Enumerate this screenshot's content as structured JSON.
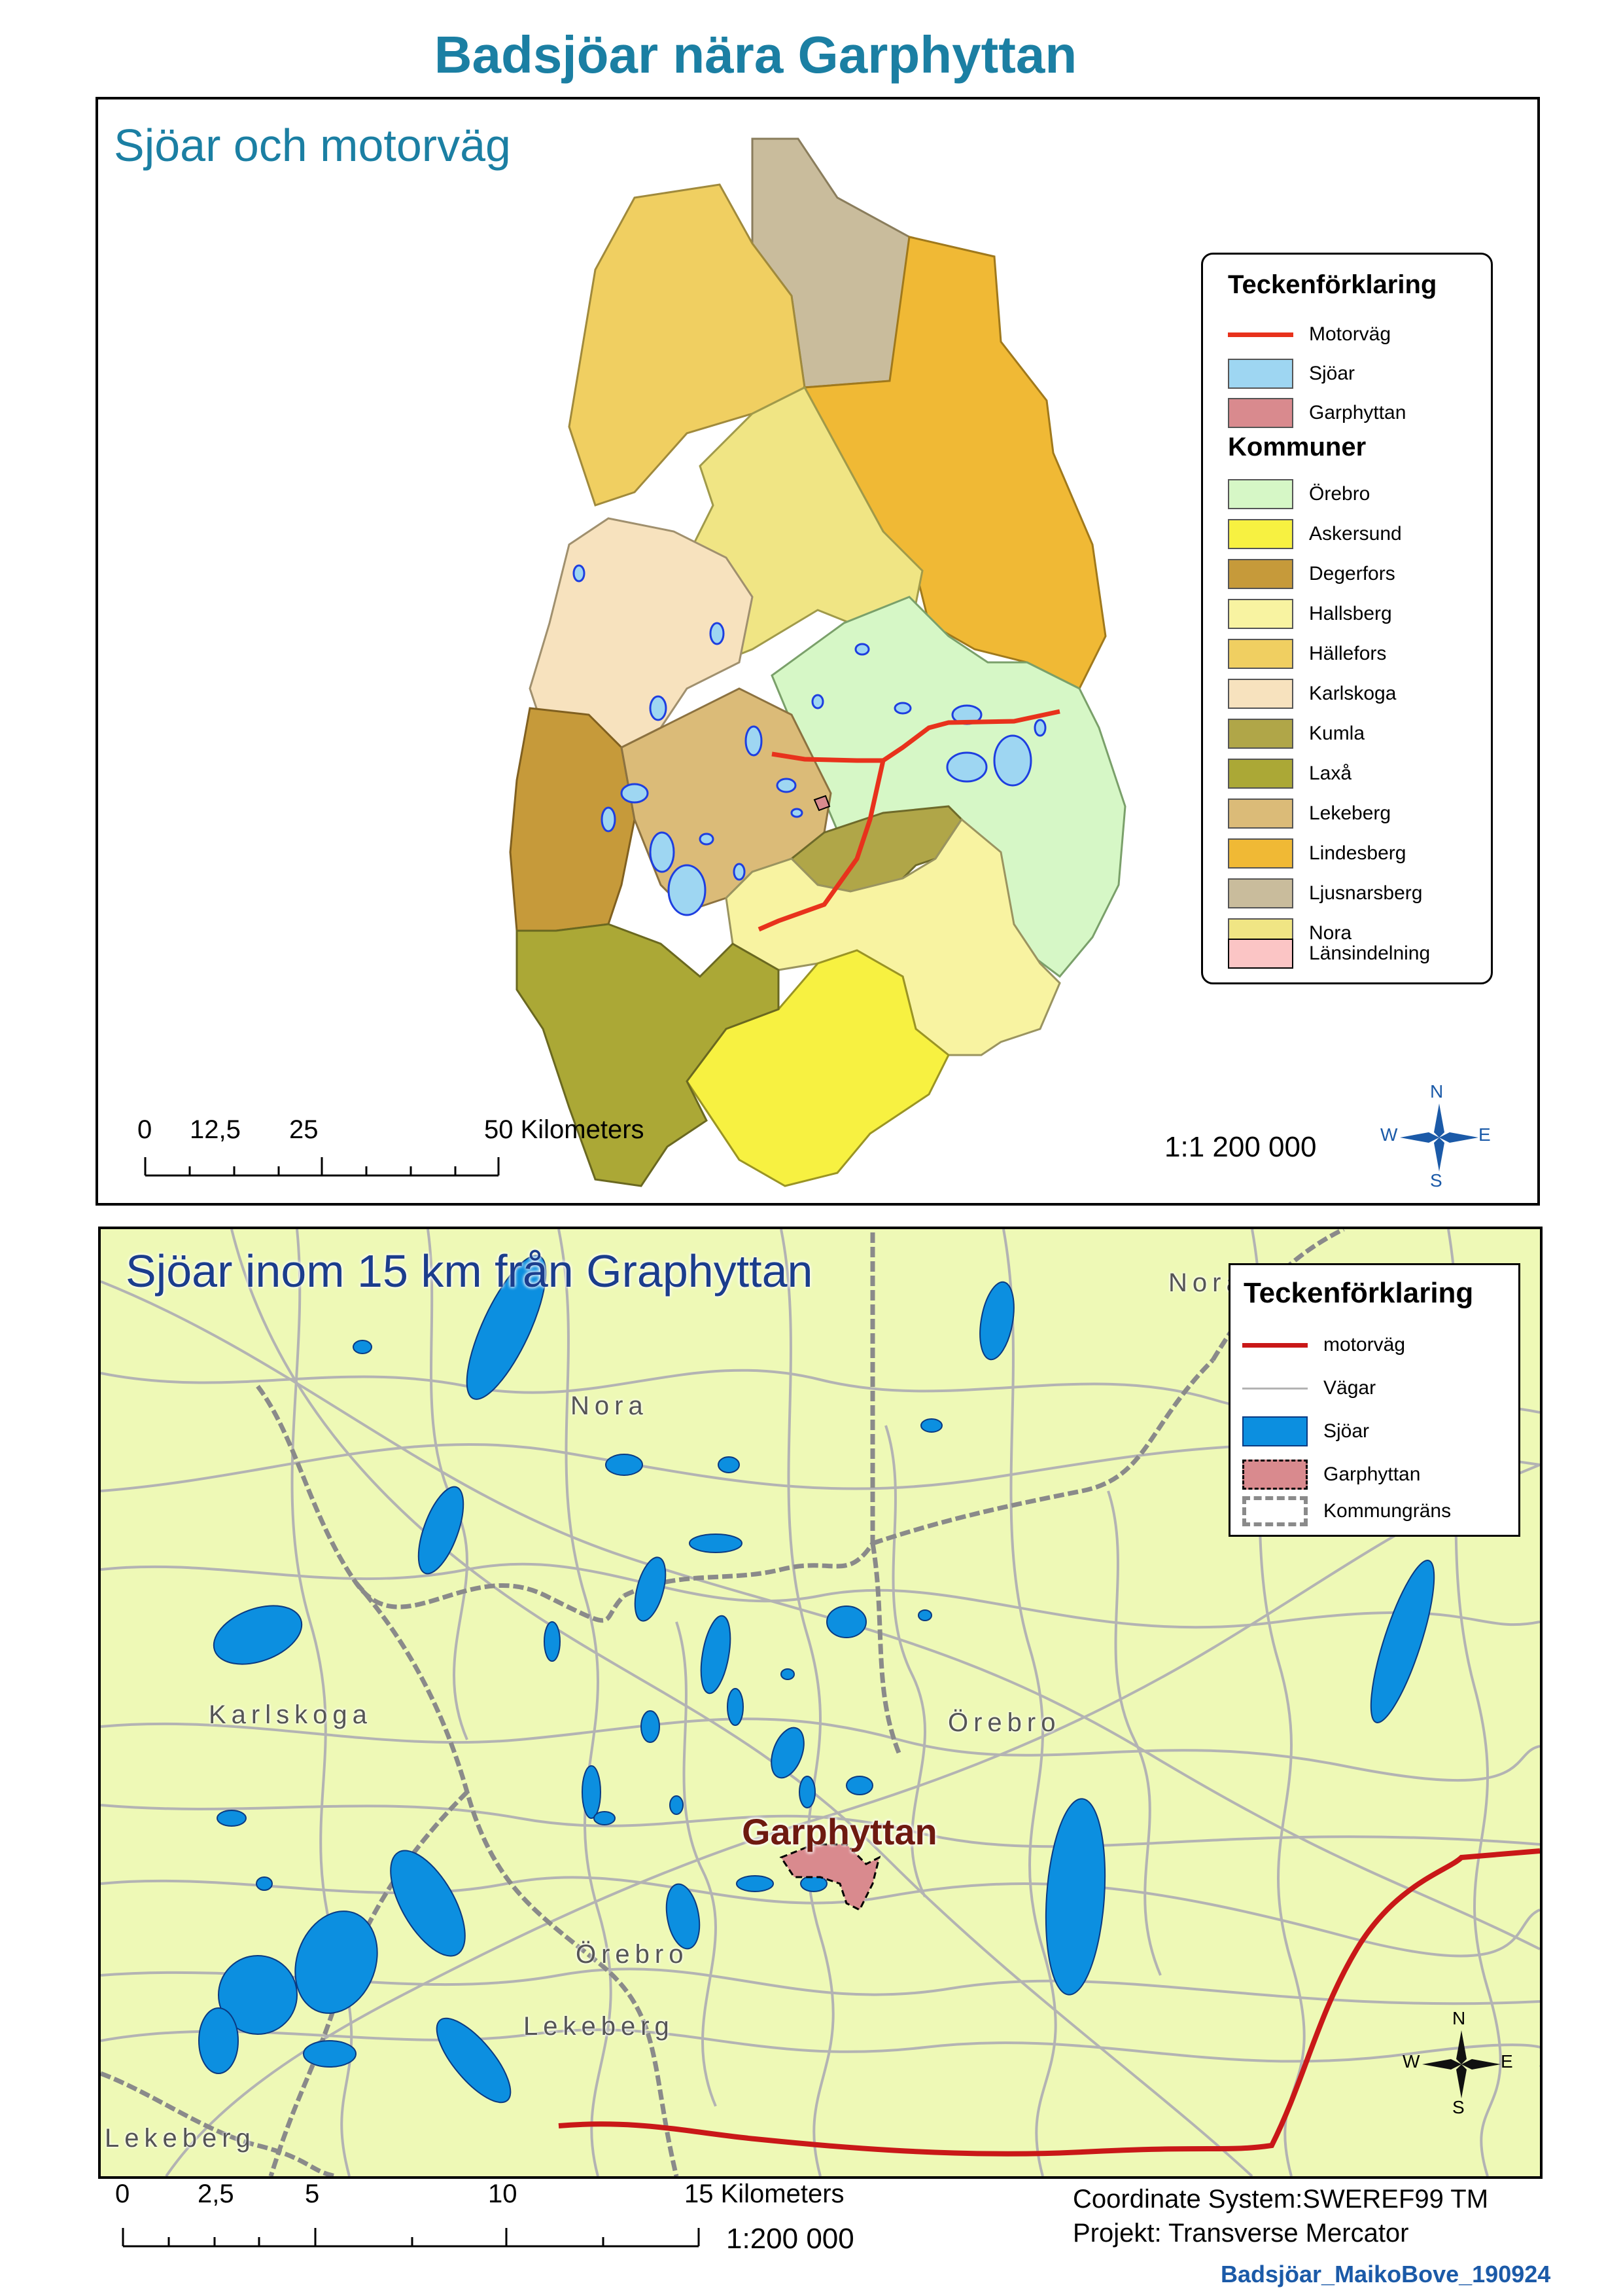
{
  "title": "Badsjöar nära Garphyttan",
  "top_map": {
    "title": "Sjöar och motorväg",
    "legend": {
      "heading": "Teckenförklaring",
      "items": [
        {
          "label": "Motorväg",
          "color": "#e8321c",
          "type": "line"
        },
        {
          "label": "Sjöar",
          "color": "#9ed6f2",
          "type": "fill"
        },
        {
          "label": "Garphyttan",
          "color": "#d98a8e",
          "type": "fill"
        }
      ],
      "subheading": "Kommuner",
      "kommuner": [
        {
          "label": "Örebro",
          "color": "#d6f7c6"
        },
        {
          "label": "Askersund",
          "color": "#f7f141"
        },
        {
          "label": "Degerfors",
          "color": "#c69a3a"
        },
        {
          "label": "Hallsberg",
          "color": "#f8f3a1"
        },
        {
          "label": "Hällefors",
          "color": "#f0cf61"
        },
        {
          "label": "Karlskoga",
          "color": "#f7e2be"
        },
        {
          "label": "Kumla",
          "color": "#b0a648"
        },
        {
          "label": "Laxå",
          "color": "#aba836"
        },
        {
          "label": "Lekeberg",
          "color": "#dbbb78"
        },
        {
          "label": "Lindesberg",
          "color": "#f0b935"
        },
        {
          "label": "Ljusnarsberg",
          "color": "#c9bc9c"
        },
        {
          "label": "Nora",
          "color": "#f0e584"
        },
        {
          "label": "Länsindelning",
          "color": "#fbc5c5"
        }
      ]
    },
    "scale": {
      "ticks": [
        "0",
        "12,5",
        "25",
        "50 Kilometers"
      ]
    },
    "ratio": "1:1 200 000",
    "compass": {
      "n": "N",
      "s": "S",
      "e": "E",
      "w": "W"
    }
  },
  "bottom_map": {
    "title": "Sjöar inom 15 km från Graphyttan",
    "legend": {
      "heading": "Teckenförklaring",
      "items": [
        {
          "label": "motorväg",
          "color": "#c91818",
          "type": "line"
        },
        {
          "label": "Vägar",
          "color": "#b3b3b3",
          "type": "thinline"
        },
        {
          "label": "Sjöar",
          "color": "#0c8fe0",
          "type": "fill"
        },
        {
          "label": "Garphyttan",
          "color": "#d98a8e",
          "type": "dashed"
        },
        {
          "label": "Kommungräns",
          "color": "#8a8a8a",
          "type": "border"
        }
      ]
    },
    "place_labels": [
      "Nora",
      "Nora",
      "Karlskoga",
      "Örebro",
      "Örebro",
      "Lekeberg",
      "Lekeberg"
    ],
    "town_label": "Garphyttan",
    "compass": {
      "n": "N",
      "s": "S",
      "e": "E",
      "w": "W"
    },
    "scale": {
      "ticks": [
        "0",
        "2,5",
        "5",
        "10",
        "15 Kilometers"
      ]
    },
    "ratio": "1:200 000"
  },
  "footer": {
    "coordinate_system": "Coordinate System:SWEREF99 TM",
    "projection": "Projekt: Transverse Mercator",
    "credit": "Badsjöar_MaikoBove_190924"
  }
}
